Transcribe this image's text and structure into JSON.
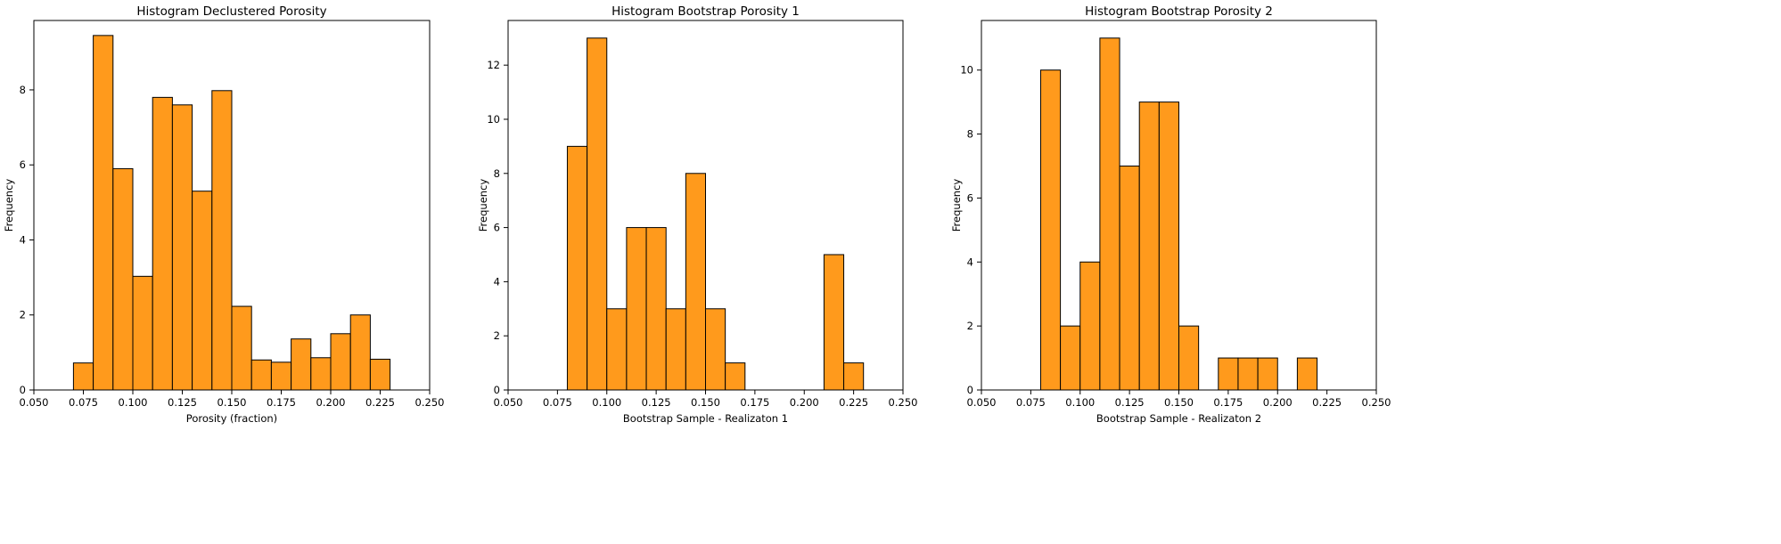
{
  "chart_data": [
    {
      "type": "bar",
      "title": "Histogram Declustered Porosity",
      "xlabel": "Porosity (fraction)",
      "ylabel": "Frequency",
      "xlim": [
        0.05,
        0.25
      ],
      "ylim": [
        0,
        9.85
      ],
      "xticks": [
        "0.050",
        "0.075",
        "0.100",
        "0.125",
        "0.150",
        "0.175",
        "0.200",
        "0.225",
        "0.250"
      ],
      "yticks": [
        "0",
        "2",
        "4",
        "6",
        "8"
      ],
      "bin_edges": [
        0.07,
        0.08,
        0.09,
        0.1,
        0.11,
        0.12,
        0.13,
        0.14,
        0.15,
        0.16,
        0.17,
        0.18,
        0.19,
        0.2,
        0.21,
        0.22,
        0.23
      ],
      "values": [
        0.72,
        9.45,
        5.9,
        3.03,
        7.8,
        7.6,
        5.3,
        7.98,
        2.23,
        0.8,
        0.74,
        1.36,
        0.86,
        1.5,
        2.0,
        0.82
      ],
      "bar_color": "#FF9A1C",
      "edge_color": "#000000",
      "grid": false
    },
    {
      "type": "bar",
      "title": "Histogram Bootstrap Porosity 1",
      "xlabel": "Bootstrap Sample - Realizaton 1",
      "ylabel": "Frequency",
      "xlim": [
        0.05,
        0.25
      ],
      "ylim": [
        0,
        13.65
      ],
      "xticks": [
        "0.050",
        "0.075",
        "0.100",
        "0.125",
        "0.150",
        "0.175",
        "0.200",
        "0.225",
        "0.250"
      ],
      "yticks": [
        "0",
        "2",
        "4",
        "6",
        "8",
        "10",
        "12"
      ],
      "bin_edges": [
        0.08,
        0.09,
        0.1,
        0.11,
        0.12,
        0.13,
        0.14,
        0.15,
        0.16,
        0.17,
        0.18,
        0.19,
        0.2,
        0.21,
        0.22,
        0.23
      ],
      "values": [
        9,
        13,
        3,
        6,
        6,
        3,
        8,
        3,
        1,
        0,
        0,
        0,
        0,
        5,
        1
      ],
      "bar_color": "#FF9A1C",
      "edge_color": "#000000",
      "grid": false
    },
    {
      "type": "bar",
      "title": "Histogram Bootstrap Porosity 2",
      "xlabel": "Bootstrap Sample - Realizaton 2",
      "ylabel": "Frequency",
      "xlim": [
        0.05,
        0.25
      ],
      "ylim": [
        0,
        11.55
      ],
      "xticks": [
        "0.050",
        "0.075",
        "0.100",
        "0.125",
        "0.150",
        "0.175",
        "0.200",
        "0.225",
        "0.250"
      ],
      "yticks": [
        "0",
        "2",
        "4",
        "6",
        "8",
        "10"
      ],
      "bin_edges": [
        0.08,
        0.09,
        0.1,
        0.11,
        0.12,
        0.13,
        0.14,
        0.15,
        0.16,
        0.17,
        0.18,
        0.19,
        0.2,
        0.21,
        0.22
      ],
      "values": [
        10,
        2,
        4,
        11,
        7,
        9,
        9,
        2,
        0,
        1,
        1,
        1,
        0,
        1
      ],
      "bar_color": "#FF9A1C",
      "edge_color": "#000000",
      "grid": false
    }
  ]
}
